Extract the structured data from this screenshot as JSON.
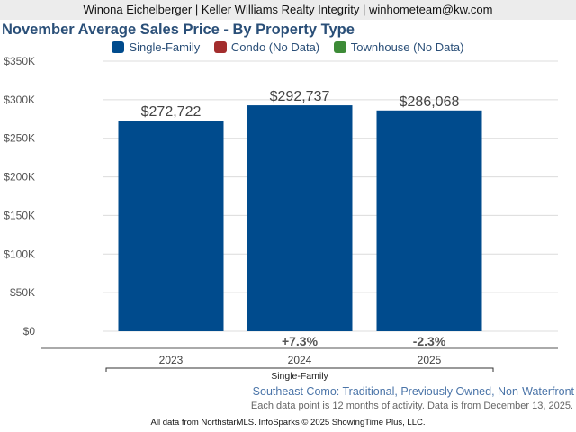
{
  "header": {
    "contact": "Winona Eichelberger | Keller Williams Realty Integrity | winhometeam@kw.com"
  },
  "chart_data": {
    "type": "bar",
    "title": "November Average Sales Price - By Property Type",
    "legend": [
      {
        "label": "Single-Family",
        "color": "#004b8d"
      },
      {
        "label": "Condo (No Data)",
        "color": "#a32d2d"
      },
      {
        "label": "Townhouse (No Data)",
        "color": "#3d8b37"
      }
    ],
    "legend_placement": "top",
    "categories": [
      "2023",
      "2024",
      "2025"
    ],
    "group_label": "Single-Family",
    "series": [
      {
        "name": "Single-Family",
        "values": [
          272722,
          292737,
          286068
        ],
        "color": "#004b8d"
      }
    ],
    "data_labels": [
      "$272,722",
      "$292,737",
      "$286,068"
    ],
    "changes": [
      "",
      "+7.3%",
      "-2.3%"
    ],
    "ylim": [
      0,
      350000
    ],
    "yticks": [
      0,
      50000,
      100000,
      150000,
      200000,
      250000,
      300000,
      350000
    ],
    "ytick_labels": [
      "$0",
      "$50K",
      "$100K",
      "$150K",
      "$200K",
      "$250K",
      "$300K",
      "$350K"
    ],
    "grid": true
  },
  "subtitle": "Southeast Como: Traditional, Previously Owned, Non-Waterfront",
  "note": "Each data point is 12 months of activity. Data is from December 13, 2025.",
  "footer": "All data from NorthstarMLS. InfoSparks © 2025 ShowingTime Plus, LLC."
}
